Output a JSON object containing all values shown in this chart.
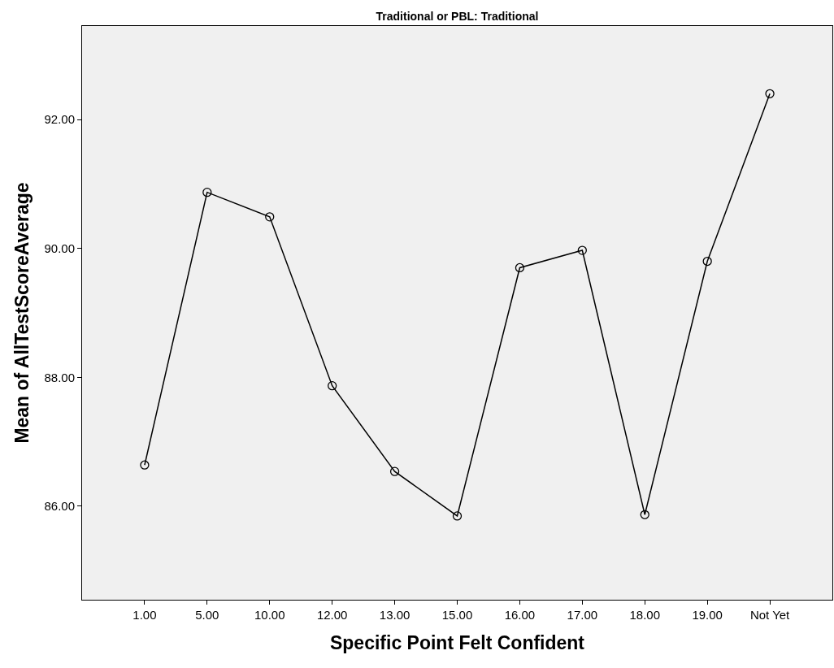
{
  "chart_data": {
    "type": "line",
    "title": "Traditional or PBL: Traditional",
    "xlabel": "Specific Point Felt Confident",
    "ylabel": "Mean of AllTestScoreAverage",
    "categories": [
      "1.00",
      "5.00",
      "10.00",
      "12.00",
      "13.00",
      "15.00",
      "16.00",
      "17.00",
      "18.00",
      "19.00",
      "Not Yet"
    ],
    "series": [
      {
        "color": "#000000",
        "values": [
          86.64,
          90.87,
          90.49,
          87.87,
          86.54,
          85.85,
          89.7,
          89.97,
          85.87,
          89.8,
          92.4
        ]
      }
    ],
    "ylim": [
      84.55,
      93.45
    ],
    "yticks": [
      {
        "value": 86,
        "label": "86.00"
      },
      {
        "value": 88,
        "label": "88.00"
      },
      {
        "value": 90,
        "label": "90.00"
      },
      {
        "value": 92,
        "label": "92.00"
      }
    ],
    "grid": false,
    "legend": false,
    "marker": "circle",
    "line_style": "solid"
  }
}
